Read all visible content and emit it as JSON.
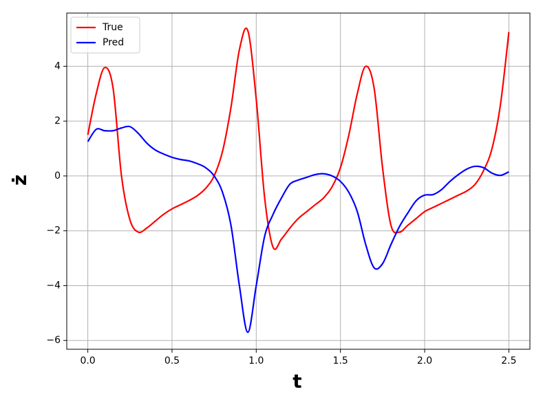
{
  "chart_data": {
    "type": "line",
    "xlabel": "t",
    "ylabel": "ż",
    "x": [
      0,
      0.05,
      0.1,
      0.15,
      0.2,
      0.25,
      0.3,
      0.35,
      0.4,
      0.45,
      0.5,
      0.55,
      0.6,
      0.65,
      0.7,
      0.75,
      0.8,
      0.85,
      0.9,
      0.95,
      1.0,
      1.05,
      1.1,
      1.15,
      1.2,
      1.25,
      1.3,
      1.35,
      1.4,
      1.45,
      1.5,
      1.55,
      1.6,
      1.65,
      1.7,
      1.75,
      1.8,
      1.85,
      1.9,
      1.95,
      2.0,
      2.05,
      2.1,
      2.15,
      2.2,
      2.25,
      2.3,
      2.35,
      2.4,
      2.45,
      2.5
    ],
    "series": [
      {
        "name": "True",
        "color": "#ff0000",
        "values": [
          1.5,
          3.0,
          3.95,
          3.2,
          0.0,
          -1.6,
          -2.05,
          -1.9,
          -1.65,
          -1.4,
          -1.2,
          -1.05,
          -0.9,
          -0.72,
          -0.45,
          0.0,
          0.9,
          2.5,
          4.6,
          5.3,
          2.8,
          -0.8,
          -2.6,
          -2.3,
          -1.9,
          -1.55,
          -1.3,
          -1.05,
          -0.8,
          -0.4,
          0.3,
          1.5,
          3.0,
          4.0,
          3.2,
          0.3,
          -1.8,
          -2.05,
          -1.8,
          -1.55,
          -1.3,
          -1.15,
          -1.0,
          -0.85,
          -0.7,
          -0.55,
          -0.3,
          0.2,
          1.0,
          2.6,
          5.25
        ]
      },
      {
        "name": "Pred",
        "color": "#0000ff",
        "values": [
          1.25,
          1.7,
          1.65,
          1.65,
          1.75,
          1.8,
          1.55,
          1.2,
          0.95,
          0.8,
          0.68,
          0.6,
          0.55,
          0.45,
          0.3,
          0.0,
          -0.6,
          -1.8,
          -4.0,
          -5.7,
          -4.0,
          -2.2,
          -1.4,
          -0.8,
          -0.3,
          -0.15,
          -0.05,
          0.05,
          0.08,
          0.0,
          -0.2,
          -0.6,
          -1.3,
          -2.5,
          -3.35,
          -3.2,
          -2.5,
          -1.85,
          -1.35,
          -0.9,
          -0.7,
          -0.68,
          -0.5,
          -0.2,
          0.05,
          0.25,
          0.35,
          0.3,
          0.1,
          0.02,
          0.15
        ]
      }
    ],
    "xlim": [
      -0.125,
      2.625
    ],
    "ylim": [
      -6.32,
      5.94
    ],
    "xticks": [
      {
        "value": 0,
        "label": "0.0"
      },
      0.5,
      {
        "value": 1,
        "label": "1.0"
      },
      1.5,
      {
        "value": 2,
        "label": "2.0"
      },
      2.5
    ],
    "yticks": [
      {
        "value": -6,
        "label": "−6"
      },
      {
        "value": -4,
        "label": "−4"
      },
      {
        "value": -2,
        "label": "−2"
      },
      0,
      2,
      4
    ],
    "grid": true,
    "legend": "upper-left"
  }
}
